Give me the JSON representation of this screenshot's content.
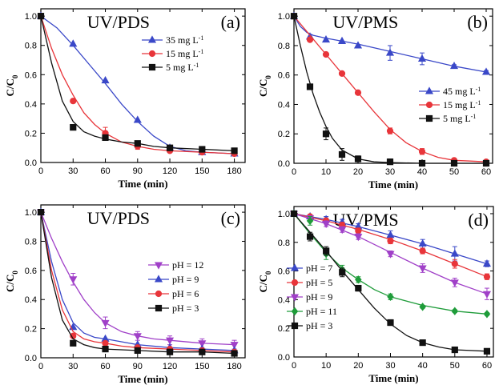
{
  "chart_data": [
    {
      "type": "line",
      "title": "UV/PDS",
      "panel_label": "(a)",
      "xlabel": "Time (min)",
      "ylabel": "C/C",
      "ylabel_sub": "0",
      "xlim": [
        0,
        190
      ],
      "ylim": [
        0,
        1.05
      ],
      "xticks": [
        0,
        30,
        60,
        90,
        120,
        150,
        180
      ],
      "yticks": [
        0.0,
        0.2,
        0.4,
        0.6,
        0.8,
        1.0
      ],
      "legend_position": "upper-right",
      "series": [
        {
          "name": "35 mg L",
          "unit_sup": "-1",
          "marker": "triangle-up",
          "color": "#3a48c8",
          "x": [
            0,
            30,
            60,
            90,
            120,
            150,
            180
          ],
          "y": [
            1.0,
            0.81,
            0.56,
            0.29,
            0.1,
            0.07,
            0.06
          ],
          "fit_x": [
            0,
            15,
            30,
            45,
            60,
            75,
            90,
            105,
            120,
            135,
            150,
            165,
            180
          ],
          "fit_y": [
            1.0,
            0.92,
            0.8,
            0.67,
            0.54,
            0.4,
            0.28,
            0.18,
            0.11,
            0.08,
            0.07,
            0.065,
            0.06
          ]
        },
        {
          "name": "15 mg L",
          "unit_sup": "-1",
          "marker": "circle",
          "color": "#e8353a",
          "x": [
            0,
            30,
            60,
            90,
            120,
            150,
            180
          ],
          "y": [
            1.0,
            0.42,
            0.2,
            0.11,
            0.08,
            0.07,
            0.06
          ],
          "err": [
            0,
            0,
            0.04,
            0.02,
            0.01,
            0.01,
            0.01
          ],
          "fit_x": [
            0,
            10,
            20,
            30,
            40,
            50,
            60,
            75,
            90,
            105,
            120,
            150,
            180
          ],
          "fit_y": [
            1.0,
            0.78,
            0.6,
            0.46,
            0.34,
            0.26,
            0.2,
            0.14,
            0.11,
            0.09,
            0.08,
            0.07,
            0.06
          ]
        },
        {
          "name": "5 mg L",
          "unit_sup": "-1",
          "marker": "square",
          "color": "#111111",
          "x": [
            0,
            30,
            60,
            90,
            120,
            150,
            180
          ],
          "y": [
            1.0,
            0.24,
            0.17,
            0.13,
            0.1,
            0.09,
            0.08
          ],
          "fit_x": [
            0,
            10,
            20,
            30,
            40,
            50,
            60,
            75,
            90,
            105,
            120,
            150,
            180
          ],
          "fit_y": [
            1.0,
            0.68,
            0.42,
            0.28,
            0.21,
            0.18,
            0.16,
            0.14,
            0.13,
            0.11,
            0.1,
            0.09,
            0.08
          ]
        }
      ]
    },
    {
      "type": "line",
      "title": "UV/PMS",
      "panel_label": "(b)",
      "xlabel": "Time (min)",
      "ylabel": "C/C",
      "ylabel_sub": "0",
      "xlim": [
        0,
        62
      ],
      "ylim": [
        0,
        1.05
      ],
      "xticks": [
        0,
        10,
        20,
        30,
        40,
        50,
        60
      ],
      "yticks": [
        0.0,
        0.2,
        0.4,
        0.6,
        0.8,
        1.0
      ],
      "legend_position": "center-right",
      "series": [
        {
          "name": "45 mg L",
          "unit_sup": "-1",
          "marker": "triangle-up",
          "color": "#3a48c8",
          "x": [
            0,
            5,
            10,
            15,
            20,
            30,
            40,
            50,
            60
          ],
          "y": [
            1.0,
            0.86,
            0.84,
            0.83,
            0.8,
            0.75,
            0.71,
            0.66,
            0.62
          ],
          "err": [
            0,
            0,
            0,
            0,
            0,
            0.05,
            0.04,
            0.01,
            0.01
          ],
          "fit_x": [
            0,
            2,
            4,
            6,
            10,
            15,
            20,
            30,
            40,
            50,
            60
          ],
          "fit_y": [
            1.0,
            0.93,
            0.89,
            0.87,
            0.85,
            0.83,
            0.81,
            0.76,
            0.71,
            0.66,
            0.62
          ]
        },
        {
          "name": "15 mg L",
          "unit_sup": "-1",
          "marker": "circle",
          "color": "#e8353a",
          "x": [
            0,
            5,
            10,
            15,
            20,
            30,
            40,
            50,
            60
          ],
          "y": [
            1.0,
            0.84,
            0.74,
            0.61,
            0.48,
            0.22,
            0.08,
            0.02,
            0.01
          ],
          "err": [
            0,
            0,
            0,
            0,
            0,
            0.02,
            0.02,
            0.01,
            0.01
          ],
          "fit_x": [
            0,
            5,
            10,
            15,
            20,
            25,
            30,
            35,
            40,
            45,
            50,
            55,
            60
          ],
          "fit_y": [
            1.0,
            0.87,
            0.74,
            0.61,
            0.48,
            0.35,
            0.23,
            0.14,
            0.08,
            0.04,
            0.02,
            0.015,
            0.01
          ]
        },
        {
          "name": "5 mg L",
          "unit_sup": "-1",
          "marker": "square",
          "color": "#111111",
          "x": [
            0,
            5,
            10,
            15,
            20,
            30,
            40,
            50,
            60
          ],
          "y": [
            1.0,
            0.52,
            0.2,
            0.06,
            0.03,
            0.01,
            0.0,
            0.0,
            0.0
          ],
          "err": [
            0,
            0,
            0.04,
            0.04,
            0.02,
            0.02,
            0,
            0,
            0
          ],
          "fit_x": [
            0,
            2,
            4,
            6,
            8,
            10,
            12,
            15,
            20,
            25,
            30,
            40,
            60
          ],
          "fit_y": [
            1.0,
            0.8,
            0.62,
            0.47,
            0.35,
            0.25,
            0.17,
            0.09,
            0.03,
            0.01,
            0.005,
            0.0,
            0.0
          ]
        }
      ]
    },
    {
      "type": "line",
      "title": "UV/PDS",
      "panel_label": "(c)",
      "xlabel": "Time (min)",
      "ylabel": "C/C",
      "ylabel_sub": "0",
      "xlim": [
        0,
        190
      ],
      "ylim": [
        0,
        1.05
      ],
      "xticks": [
        0,
        30,
        60,
        90,
        120,
        150,
        180
      ],
      "yticks": [
        0.0,
        0.2,
        0.4,
        0.6,
        0.8,
        1.0
      ],
      "legend_position": "center-right",
      "series": [
        {
          "name": "pH = 12",
          "marker": "triangle-down",
          "color": "#a040c8",
          "x": [
            0,
            30,
            60,
            90,
            120,
            150,
            180
          ],
          "y": [
            1.0,
            0.54,
            0.24,
            0.15,
            0.12,
            0.1,
            0.09
          ],
          "err": [
            0,
            0.04,
            0.04,
            0.03,
            0.03,
            0.03,
            0.03
          ],
          "fit_x": [
            0,
            10,
            20,
            30,
            40,
            50,
            60,
            75,
            90,
            105,
            120,
            150,
            180
          ],
          "fit_y": [
            1.0,
            0.82,
            0.66,
            0.52,
            0.4,
            0.31,
            0.24,
            0.18,
            0.15,
            0.13,
            0.12,
            0.1,
            0.09
          ]
        },
        {
          "name": "pH = 9",
          "marker": "triangle-up",
          "color": "#3a48c8",
          "x": [
            0,
            30,
            60,
            90,
            120,
            150,
            180
          ],
          "y": [
            1.0,
            0.21,
            0.13,
            0.09,
            0.07,
            0.06,
            0.05
          ],
          "fit_x": [
            0,
            10,
            20,
            30,
            40,
            50,
            60,
            75,
            90,
            120,
            150,
            180
          ],
          "fit_y": [
            1.0,
            0.66,
            0.4,
            0.24,
            0.17,
            0.14,
            0.13,
            0.11,
            0.09,
            0.07,
            0.06,
            0.05
          ]
        },
        {
          "name": "pH = 6",
          "marker": "circle",
          "color": "#e8353a",
          "x": [
            0,
            30,
            60,
            90,
            120,
            150,
            180
          ],
          "y": [
            1.0,
            0.15,
            0.1,
            0.07,
            0.06,
            0.05,
            0.04
          ],
          "fit_x": [
            0,
            10,
            20,
            30,
            40,
            50,
            60,
            75,
            90,
            120,
            150,
            180
          ],
          "fit_y": [
            1.0,
            0.6,
            0.33,
            0.18,
            0.13,
            0.11,
            0.1,
            0.08,
            0.07,
            0.06,
            0.05,
            0.04
          ]
        },
        {
          "name": "pH = 3",
          "marker": "square",
          "color": "#111111",
          "x": [
            0,
            30,
            60,
            90,
            120,
            150,
            180
          ],
          "y": [
            1.0,
            0.1,
            0.06,
            0.05,
            0.04,
            0.04,
            0.03
          ],
          "fit_x": [
            0,
            10,
            20,
            30,
            40,
            50,
            60,
            90,
            120,
            150,
            180
          ],
          "fit_y": [
            1.0,
            0.55,
            0.26,
            0.13,
            0.09,
            0.07,
            0.06,
            0.05,
            0.04,
            0.04,
            0.03
          ]
        }
      ]
    },
    {
      "type": "line",
      "title": "UV/PMS",
      "panel_label": "(d)",
      "xlabel": "Time (min)",
      "ylabel": "C/C",
      "ylabel_sub": "0",
      "xlim": [
        0,
        62
      ],
      "ylim": [
        0,
        1.05
      ],
      "xticks": [
        0,
        10,
        20,
        30,
        40,
        50,
        60
      ],
      "yticks": [
        0.0,
        0.2,
        0.4,
        0.6,
        0.8,
        1.0
      ],
      "legend_position": "lower-left",
      "series": [
        {
          "name": "pH = 7",
          "marker": "triangle-up",
          "color": "#3a48c8",
          "x": [
            0,
            5,
            10,
            15,
            20,
            30,
            40,
            50,
            60
          ],
          "y": [
            1.0,
            0.98,
            0.96,
            0.94,
            0.91,
            0.85,
            0.79,
            0.72,
            0.65
          ],
          "err": [
            0,
            0,
            0.02,
            0.02,
            0.02,
            0.03,
            0.03,
            0.05,
            0.02
          ],
          "fit_x": [
            0,
            10,
            20,
            30,
            40,
            50,
            60
          ],
          "fit_y": [
            1.0,
            0.96,
            0.91,
            0.85,
            0.79,
            0.72,
            0.65
          ]
        },
        {
          "name": "pH = 5",
          "marker": "circle",
          "color": "#e8353a",
          "x": [
            0,
            5,
            10,
            15,
            20,
            30,
            40,
            50,
            60
          ],
          "y": [
            1.0,
            0.98,
            0.95,
            0.92,
            0.88,
            0.81,
            0.74,
            0.65,
            0.56
          ],
          "err": [
            0,
            0,
            0.02,
            0.02,
            0.02,
            0.02,
            0.02,
            0.03,
            0.02
          ],
          "fit_x": [
            0,
            10,
            20,
            30,
            40,
            50,
            60
          ],
          "fit_y": [
            1.0,
            0.95,
            0.89,
            0.82,
            0.74,
            0.65,
            0.56
          ]
        },
        {
          "name": "pH = 9",
          "marker": "triangle-down",
          "color": "#a040c8",
          "x": [
            0,
            5,
            10,
            15,
            20,
            30,
            40,
            50,
            60
          ],
          "y": [
            1.0,
            0.97,
            0.93,
            0.89,
            0.84,
            0.72,
            0.62,
            0.52,
            0.44
          ],
          "err": [
            0,
            0,
            0.02,
            0.02,
            0.02,
            0.02,
            0.03,
            0.03,
            0.04
          ],
          "fit_x": [
            0,
            10,
            20,
            30,
            40,
            50,
            60
          ],
          "fit_y": [
            1.0,
            0.93,
            0.84,
            0.73,
            0.62,
            0.52,
            0.44
          ]
        },
        {
          "name": "pH = 11",
          "marker": "diamond",
          "color": "#1f9c3a",
          "x": [
            0,
            5,
            10,
            15,
            20,
            30,
            40,
            50,
            60
          ],
          "y": [
            1.0,
            0.95,
            0.72,
            0.61,
            0.54,
            0.42,
            0.35,
            0.32,
            0.3
          ],
          "err": [
            0,
            0.03,
            0.04,
            0.03,
            0.02,
            0.02,
            0.01,
            0.01,
            0.01
          ],
          "fit_x": [
            0,
            5,
            10,
            15,
            20,
            25,
            30,
            40,
            50,
            60
          ],
          "fit_y": [
            1.0,
            0.86,
            0.73,
            0.62,
            0.54,
            0.47,
            0.42,
            0.36,
            0.32,
            0.3
          ]
        },
        {
          "name": "pH = 3",
          "marker": "square",
          "color": "#111111",
          "x": [
            0,
            5,
            10,
            15,
            20,
            30,
            40,
            50,
            60
          ],
          "y": [
            1.0,
            0.84,
            0.74,
            0.59,
            0.48,
            0.24,
            0.1,
            0.05,
            0.04
          ],
          "err": [
            0,
            0.03,
            0.03,
            0.03,
            0.02,
            0.02,
            0.01,
            0.01,
            0.01
          ],
          "fit_x": [
            0,
            5,
            10,
            15,
            20,
            25,
            30,
            35,
            40,
            45,
            50,
            55,
            60
          ],
          "fit_y": [
            1.0,
            0.87,
            0.74,
            0.6,
            0.47,
            0.34,
            0.23,
            0.15,
            0.1,
            0.07,
            0.05,
            0.045,
            0.04
          ]
        }
      ]
    }
  ]
}
